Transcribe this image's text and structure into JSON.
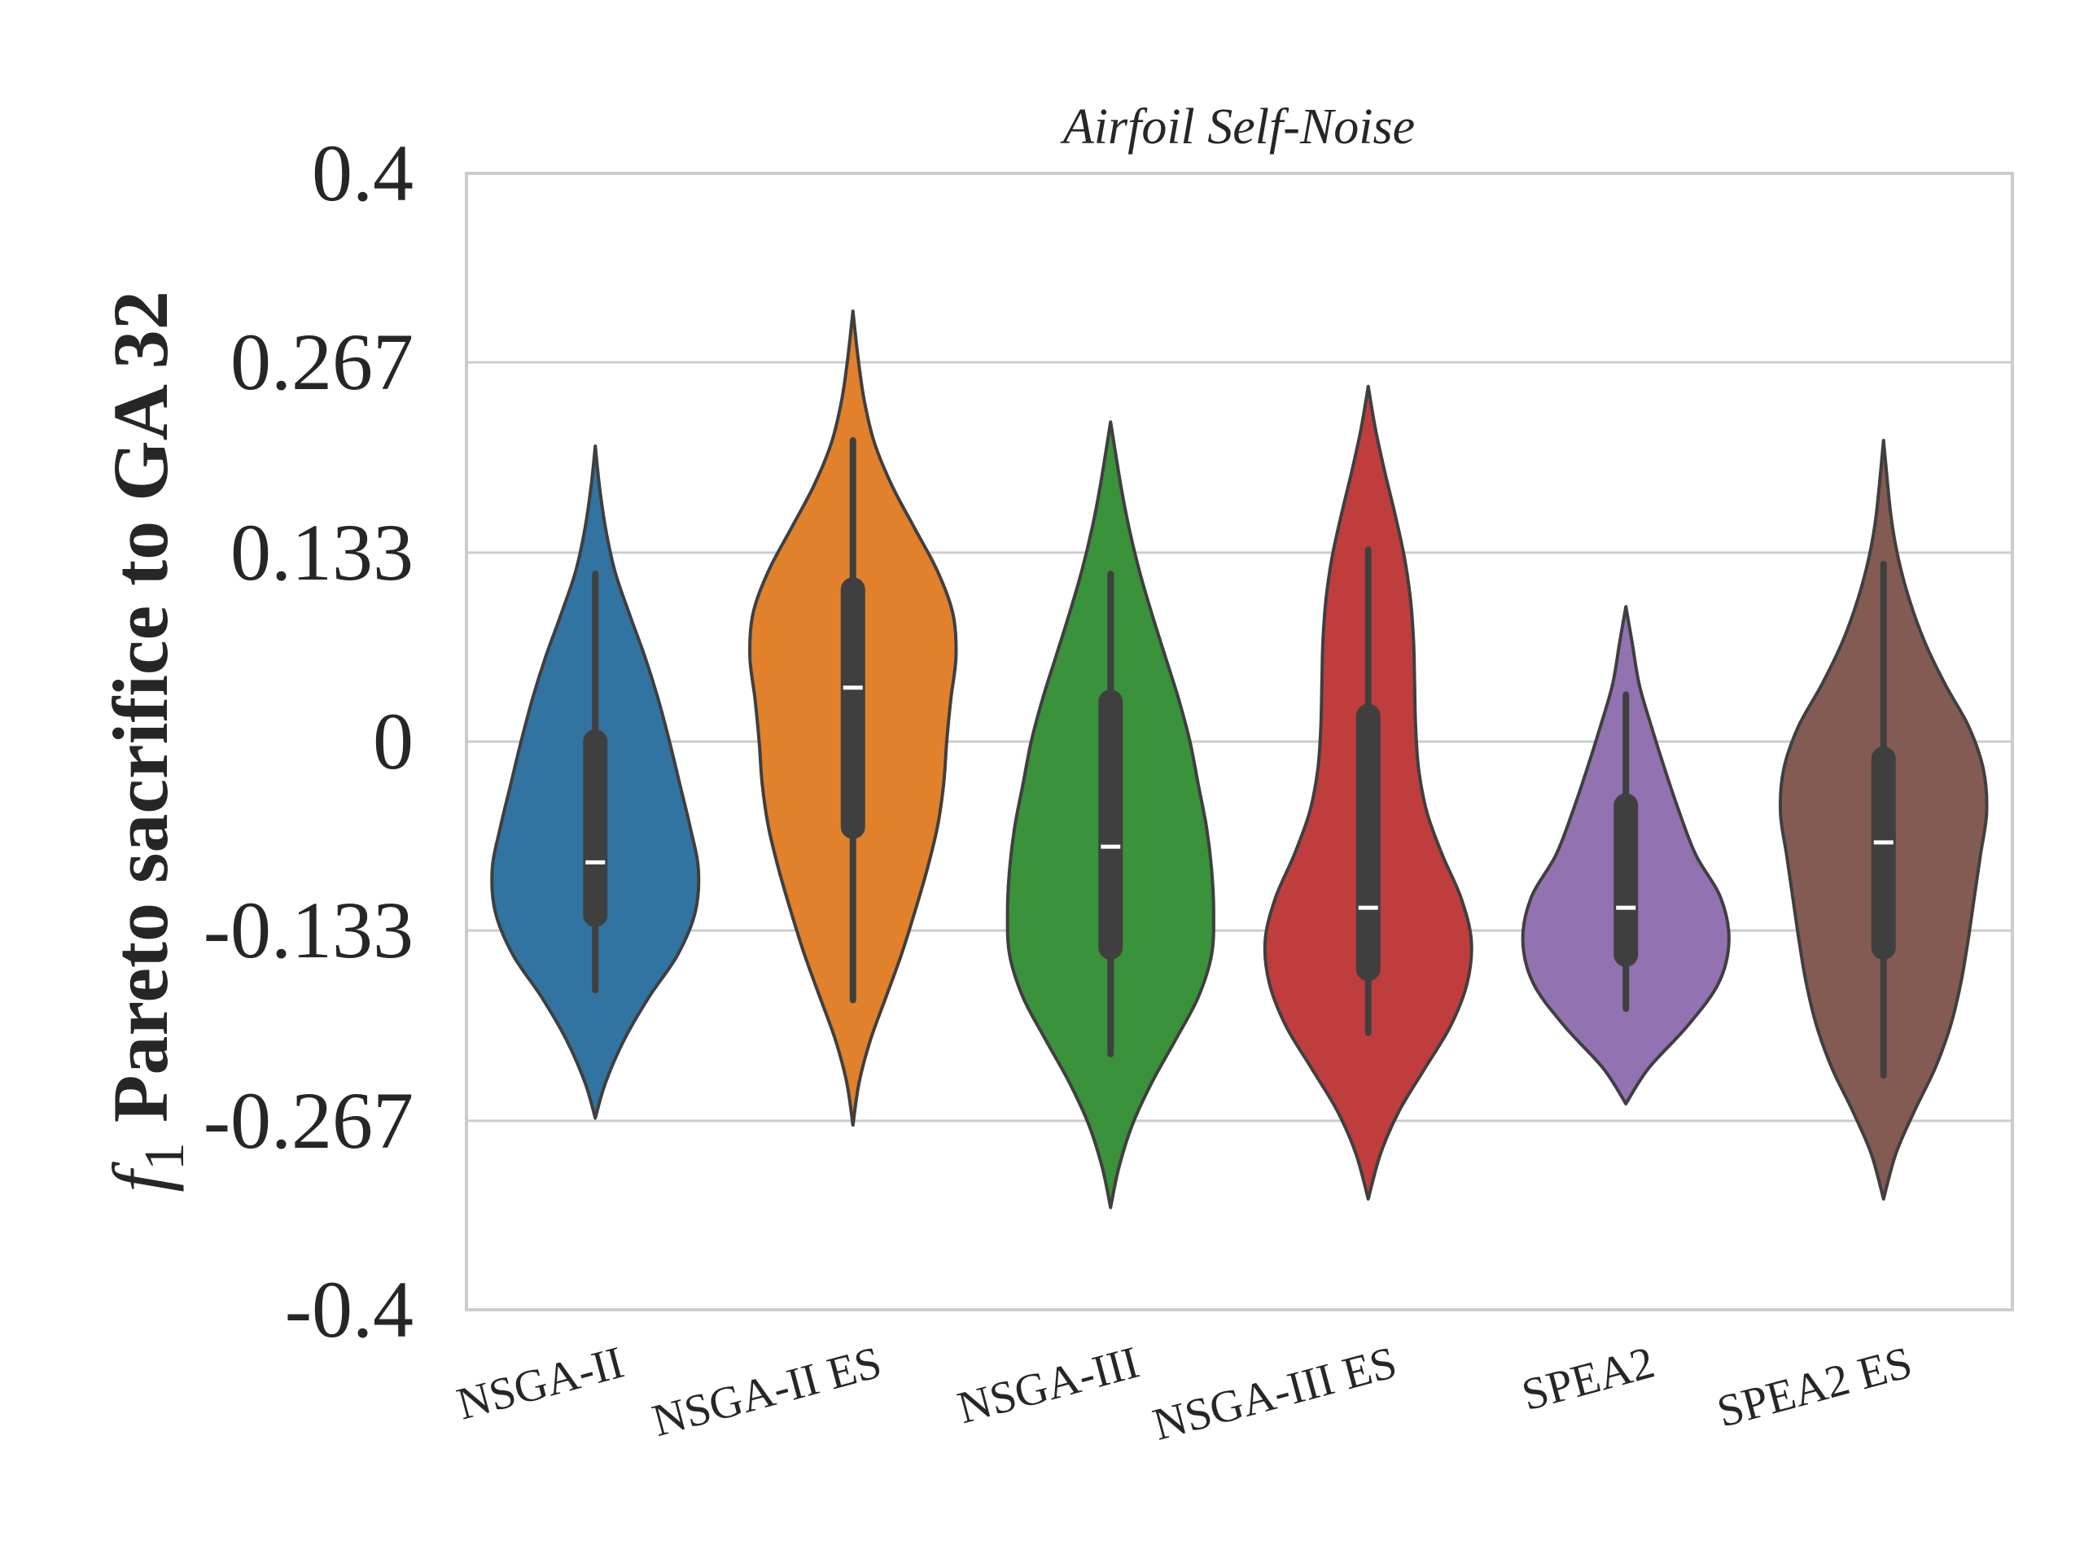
{
  "chart_data": {
    "type": "violin",
    "title": "Airfoil Self-Noise",
    "ylabel": {
      "italic_symbol": "f",
      "subscript": "1",
      "text": " Pareto sacrifice to GA 32"
    },
    "xlabel": "",
    "ylim": [
      -0.4,
      0.4
    ],
    "yticks": [
      {
        "value": 0.4,
        "label": "0.4"
      },
      {
        "value": 0.267,
        "label": "0.267"
      },
      {
        "value": 0.133,
        "label": "0.133"
      },
      {
        "value": 0,
        "label": "0"
      },
      {
        "value": -0.133,
        "label": "-0.133"
      },
      {
        "value": -0.267,
        "label": "-0.267"
      },
      {
        "value": -0.4,
        "label": "-0.4"
      }
    ],
    "grid": "horizontal",
    "categories": [
      "NSGA-II",
      "NSGA-II ES",
      "NSGA-III",
      "NSGA-III ES",
      "SPEA2",
      "SPEA2 ES"
    ],
    "series": [
      {
        "category": "NSGA-II",
        "color": "#3274a1",
        "min": -0.175,
        "q1": -0.122,
        "median": -0.085,
        "q3": 0.0,
        "max": 0.118,
        "kde_min": -0.265,
        "kde_max": 0.208,
        "density": [
          [
            -0.265,
            0.0
          ],
          [
            -0.24,
            0.1
          ],
          [
            -0.21,
            0.28
          ],
          [
            -0.18,
            0.52
          ],
          [
            -0.15,
            0.8
          ],
          [
            -0.12,
            0.97
          ],
          [
            -0.09,
            1.0
          ],
          [
            -0.06,
            0.92
          ],
          [
            -0.03,
            0.82
          ],
          [
            0.0,
            0.72
          ],
          [
            0.03,
            0.61
          ],
          [
            0.06,
            0.48
          ],
          [
            0.09,
            0.33
          ],
          [
            0.12,
            0.19
          ],
          [
            0.15,
            0.1
          ],
          [
            0.18,
            0.04
          ],
          [
            0.208,
            0.0
          ]
        ]
      },
      {
        "category": "NSGA-II ES",
        "color": "#e1812c",
        "min": -0.182,
        "q1": -0.06,
        "median": 0.038,
        "q3": 0.107,
        "max": 0.212,
        "kde_min": -0.27,
        "kde_max": 0.303,
        "density": [
          [
            -0.27,
            0.0
          ],
          [
            -0.24,
            0.06
          ],
          [
            -0.21,
            0.17
          ],
          [
            -0.18,
            0.32
          ],
          [
            -0.15,
            0.47
          ],
          [
            -0.12,
            0.6
          ],
          [
            -0.09,
            0.72
          ],
          [
            -0.06,
            0.82
          ],
          [
            -0.03,
            0.88
          ],
          [
            0.0,
            0.91
          ],
          [
            0.03,
            0.95
          ],
          [
            0.06,
            1.0
          ],
          [
            0.09,
            0.97
          ],
          [
            0.12,
            0.82
          ],
          [
            0.15,
            0.6
          ],
          [
            0.18,
            0.38
          ],
          [
            0.21,
            0.21
          ],
          [
            0.24,
            0.11
          ],
          [
            0.27,
            0.05
          ],
          [
            0.303,
            0.0
          ]
        ]
      },
      {
        "category": "NSGA-III",
        "color": "#3a923a",
        "min": -0.22,
        "q1": -0.145,
        "median": -0.074,
        "q3": 0.028,
        "max": 0.118,
        "kde_min": -0.328,
        "kde_max": 0.225,
        "density": [
          [
            -0.328,
            0.0
          ],
          [
            -0.3,
            0.08
          ],
          [
            -0.27,
            0.21
          ],
          [
            -0.24,
            0.4
          ],
          [
            -0.21,
            0.63
          ],
          [
            -0.18,
            0.85
          ],
          [
            -0.15,
            0.98
          ],
          [
            -0.12,
            1.0
          ],
          [
            -0.09,
            0.98
          ],
          [
            -0.06,
            0.93
          ],
          [
            -0.03,
            0.85
          ],
          [
            0.0,
            0.77
          ],
          [
            0.03,
            0.66
          ],
          [
            0.06,
            0.53
          ],
          [
            0.09,
            0.4
          ],
          [
            0.12,
            0.28
          ],
          [
            0.15,
            0.18
          ],
          [
            0.18,
            0.1
          ],
          [
            0.225,
            0.0
          ]
        ]
      },
      {
        "category": "NSGA-III ES",
        "color": "#c03d3e",
        "min": -0.205,
        "q1": -0.16,
        "median": -0.117,
        "q3": 0.018,
        "max": 0.135,
        "kde_min": -0.322,
        "kde_max": 0.25,
        "density": [
          [
            -0.322,
            0.0
          ],
          [
            -0.29,
            0.12
          ],
          [
            -0.26,
            0.3
          ],
          [
            -0.23,
            0.55
          ],
          [
            -0.2,
            0.8
          ],
          [
            -0.17,
            0.96
          ],
          [
            -0.14,
            1.0
          ],
          [
            -0.11,
            0.9
          ],
          [
            -0.08,
            0.72
          ],
          [
            -0.05,
            0.57
          ],
          [
            -0.02,
            0.49
          ],
          [
            0.01,
            0.46
          ],
          [
            0.04,
            0.45
          ],
          [
            0.07,
            0.44
          ],
          [
            0.1,
            0.41
          ],
          [
            0.13,
            0.35
          ],
          [
            0.16,
            0.26
          ],
          [
            0.19,
            0.16
          ],
          [
            0.22,
            0.07
          ],
          [
            0.25,
            0.0
          ]
        ]
      },
      {
        "category": "SPEA2",
        "color": "#9372b2",
        "min": -0.188,
        "q1": -0.15,
        "median": -0.117,
        "q3": -0.045,
        "max": 0.033,
        "kde_min": -0.255,
        "kde_max": 0.095,
        "density": [
          [
            -0.255,
            0.0
          ],
          [
            -0.23,
            0.22
          ],
          [
            -0.2,
            0.6
          ],
          [
            -0.17,
            0.9
          ],
          [
            -0.14,
            1.0
          ],
          [
            -0.11,
            0.92
          ],
          [
            -0.08,
            0.68
          ],
          [
            -0.05,
            0.52
          ],
          [
            -0.02,
            0.38
          ],
          [
            0.01,
            0.25
          ],
          [
            0.04,
            0.13
          ],
          [
            0.07,
            0.06
          ],
          [
            0.095,
            0.0
          ]
        ]
      },
      {
        "category": "SPEA2 ES",
        "color": "#845b53",
        "min": -0.235,
        "q1": -0.145,
        "median": -0.071,
        "q3": -0.012,
        "max": 0.125,
        "kde_min": -0.322,
        "kde_max": 0.212,
        "density": [
          [
            -0.322,
            0.0
          ],
          [
            -0.29,
            0.12
          ],
          [
            -0.26,
            0.3
          ],
          [
            -0.23,
            0.5
          ],
          [
            -0.2,
            0.65
          ],
          [
            -0.17,
            0.75
          ],
          [
            -0.14,
            0.82
          ],
          [
            -0.11,
            0.88
          ],
          [
            -0.08,
            0.94
          ],
          [
            -0.05,
            1.0
          ],
          [
            -0.02,
            0.97
          ],
          [
            0.01,
            0.83
          ],
          [
            0.04,
            0.6
          ],
          [
            0.07,
            0.4
          ],
          [
            0.1,
            0.25
          ],
          [
            0.13,
            0.14
          ],
          [
            0.16,
            0.07
          ],
          [
            0.212,
            0.0
          ]
        ]
      }
    ]
  }
}
